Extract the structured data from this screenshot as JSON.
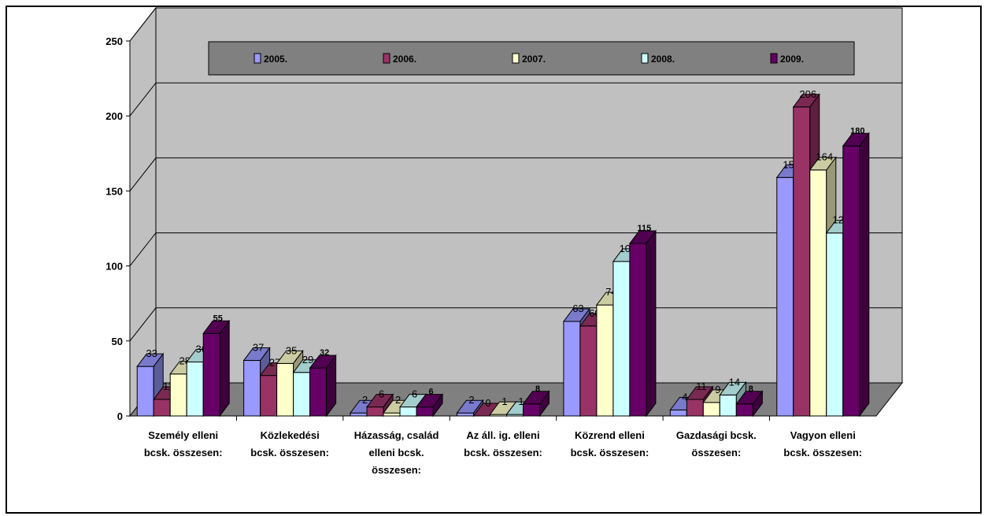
{
  "chart_data": {
    "type": "bar",
    "title": "",
    "xlabel": "",
    "ylabel": "",
    "ylim": [
      0,
      250
    ],
    "yticks": [
      "0",
      "50",
      "100",
      "150",
      "200",
      "250"
    ],
    "grid": true,
    "legend_position": "top",
    "categories": [
      [
        "Személy elleni",
        "bcsk. összesen:"
      ],
      [
        "Közlekedési",
        "bcsk. összesen:"
      ],
      [
        "Házasság, család",
        "elleni bcsk.",
        "összesen:"
      ],
      [
        "Az áll. ig. elleni",
        "bcsk. összesen:"
      ],
      [
        "Közrend elleni",
        "bcsk. összesen:"
      ],
      [
        "Gazdasági bcsk.",
        "összesen:"
      ],
      [
        "Vagyon elleni",
        "bcsk. összesen:"
      ]
    ],
    "series": [
      {
        "name": "2005.",
        "color": "#9999ff",
        "values": [
          33,
          37,
          2,
          2,
          63,
          4,
          159
        ]
      },
      {
        "name": "2006.",
        "color": "#993366",
        "values": [
          11,
          27,
          6,
          0,
          60,
          11,
          206
        ]
      },
      {
        "name": "2007.",
        "color": "#ffffcc",
        "values": [
          28,
          35,
          2,
          1,
          74,
          9,
          164
        ]
      },
      {
        "name": "2008.",
        "color": "#ccffff",
        "values": [
          36,
          29,
          6,
          1,
          103,
          14,
          122
        ]
      },
      {
        "name": "2009.",
        "color": "#660066",
        "values": [
          55,
          32,
          6,
          8,
          115,
          8,
          180
        ]
      }
    ]
  }
}
